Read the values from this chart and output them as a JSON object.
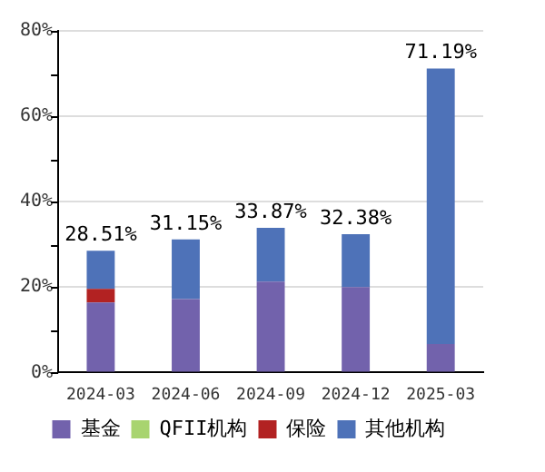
{
  "chart_data": {
    "type": "bar",
    "stacked": true,
    "categories": [
      "2024-03",
      "2024-06",
      "2024-09",
      "2024-12",
      "2025-03"
    ],
    "series": [
      {
        "name": "基金",
        "color": "#7262ac",
        "values": [
          16.4,
          17.2,
          21.3,
          20.0,
          6.7
        ]
      },
      {
        "name": "QFII机构",
        "color": "#a8d46f",
        "values": [
          0,
          0,
          0,
          0,
          0
        ]
      },
      {
        "name": "保险",
        "color": "#b22222",
        "values": [
          3.2,
          0,
          0,
          0,
          0
        ]
      },
      {
        "name": "其他机构",
        "color": "#4e72b8",
        "values": [
          8.91,
          13.95,
          12.57,
          12.38,
          64.49
        ]
      }
    ],
    "totals": [
      "28.51%",
      "31.15%",
      "33.87%",
      "32.38%",
      "71.19%"
    ],
    "ylim": [
      0,
      80
    ],
    "yticks": [
      {
        "value": 0,
        "label": "0%"
      },
      {
        "value": 10,
        "label": null
      },
      {
        "value": 20,
        "label": "20%"
      },
      {
        "value": 30,
        "label": null
      },
      {
        "value": 40,
        "label": "40%"
      },
      {
        "value": 50,
        "label": null
      },
      {
        "value": 60,
        "label": "60%"
      },
      {
        "value": 70,
        "label": null
      },
      {
        "value": 80,
        "label": "80%"
      }
    ],
    "grid": "y",
    "legend": "bottom"
  }
}
